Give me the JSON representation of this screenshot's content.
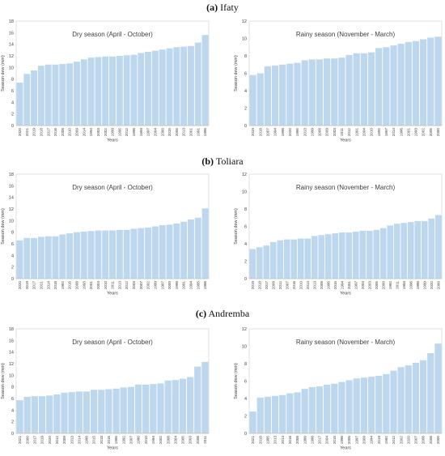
{
  "sections": [
    {
      "letter": "(a)",
      "name": "Ifaty"
    },
    {
      "letter": "(b)",
      "name": "Toliara"
    },
    {
      "letter": "(c)",
      "name": "Andremba"
    }
  ],
  "chart_data": [
    {
      "type": "bar",
      "section": "Ifaty",
      "title": "Dry season (April - October)",
      "xlabel": "Years",
      "ylabel": "Season dew (mm)",
      "ylim": [
        0,
        18
      ],
      "yticks": [
        0,
        2,
        4,
        6,
        8,
        10,
        12,
        14,
        16,
        18
      ],
      "color": "#bdd7ee",
      "grid": false,
      "categories": [
        "2020",
        "2021",
        "2019",
        "2018",
        "2017",
        "2016",
        "2008",
        "2010",
        "2009",
        "2014",
        "1994",
        "2003",
        "2002",
        "1999",
        "1995",
        "2012",
        "1998",
        "1993",
        "1997",
        "2004",
        "2000",
        "2015",
        "2005",
        "2013",
        "2001",
        "1991",
        "1996"
      ],
      "values": [
        7.4,
        8.9,
        9.5,
        10.3,
        10.5,
        10.5,
        10.6,
        10.7,
        11.0,
        11.4,
        11.7,
        11.8,
        11.9,
        11.9,
        12.0,
        12.1,
        12.2,
        12.5,
        12.7,
        12.9,
        13.1,
        13.3,
        13.5,
        13.6,
        13.7,
        14.3,
        15.6
      ]
    },
    {
      "type": "bar",
      "section": "Ifaty",
      "title": "Rainy season (November - March)",
      "xlabel": "Years",
      "ylabel": "Season dew (mm)",
      "ylim": [
        0,
        12
      ],
      "yticks": [
        0,
        2,
        4,
        6,
        8,
        10,
        12
      ],
      "color": "#bdd7ee",
      "grid": false,
      "categories": [
        "2019",
        "2018",
        "2007",
        "1994",
        "1998",
        "2020",
        "1995",
        "2013",
        "1999",
        "2008",
        "2009",
        "2003",
        "2011",
        "2012",
        "1991",
        "2004",
        "2010",
        "1992",
        "1997",
        "2014",
        "1996",
        "2001",
        "1993",
        "2002",
        "2005",
        "2000"
      ],
      "values": [
        5.8,
        6.0,
        6.8,
        6.9,
        7.0,
        7.1,
        7.2,
        7.5,
        7.6,
        7.6,
        7.7,
        7.7,
        7.8,
        8.1,
        8.3,
        8.3,
        8.4,
        8.9,
        9.0,
        9.2,
        9.4,
        9.6,
        9.7,
        9.9,
        10.1,
        10.2
      ]
    },
    {
      "type": "bar",
      "section": "Toliara",
      "title": "Dry season (April - October)",
      "xlabel": "Years",
      "ylabel": "Season dew (mm)",
      "ylim": [
        0,
        18
      ],
      "yticks": [
        0,
        2,
        4,
        6,
        8,
        10,
        12,
        14,
        16,
        18
      ],
      "color": "#bdd7ee",
      "grid": false,
      "categories": [
        "2020",
        "2019",
        "2017",
        "2021",
        "2014",
        "2018",
        "1992",
        "2016",
        "2008",
        "1993",
        "2001",
        "2004",
        "2010",
        "2011",
        "2013",
        "2012",
        "2003",
        "2007",
        "2002",
        "1999",
        "1997",
        "2000",
        "1998",
        "1991",
        "1994",
        "1995",
        "1996"
      ],
      "values": [
        6.6,
        7.0,
        7.0,
        7.2,
        7.3,
        7.3,
        7.6,
        7.8,
        8.0,
        8.1,
        8.2,
        8.3,
        8.3,
        8.3,
        8.4,
        8.4,
        8.6,
        8.7,
        8.8,
        9.0,
        9.2,
        9.3,
        9.5,
        9.8,
        10.2,
        10.5,
        12.1
      ]
    },
    {
      "type": "bar",
      "section": "Toliara",
      "title": "Rainy season (November - March)",
      "xlabel": "Years",
      "ylabel": "Season dew (mm)",
      "ylim": [
        0,
        12
      ],
      "yticks": [
        0,
        2,
        4,
        6,
        8,
        10,
        12
      ],
      "color": "#bdd7ee",
      "grid": false,
      "categories": [
        "2019",
        "2018",
        "2017",
        "2009",
        "2012",
        "2007",
        "2016",
        "2010",
        "2014",
        "2013",
        "2008",
        "1995",
        "2015",
        "1994",
        "2001",
        "1997",
        "2004",
        "2003",
        "2005",
        "2000",
        "1992",
        "2011",
        "1993",
        "1996",
        "1998",
        "1999",
        "2020",
        "2000"
      ],
      "values": [
        3.4,
        3.6,
        3.8,
        4.2,
        4.4,
        4.5,
        4.5,
        4.6,
        4.6,
        4.9,
        5.0,
        5.1,
        5.2,
        5.3,
        5.3,
        5.4,
        5.5,
        5.5,
        5.6,
        5.8,
        6.1,
        6.3,
        6.4,
        6.5,
        6.6,
        6.6,
        6.9,
        7.3
      ]
    },
    {
      "type": "bar",
      "section": "Andremba",
      "title": "Dry season (April - October)",
      "xlabel": "Years",
      "ylabel": "Season dew (mm)",
      "ylim": [
        0,
        18
      ],
      "yticks": [
        0,
        2,
        4,
        6,
        8,
        10,
        12,
        14,
        16,
        18
      ],
      "color": "#bdd7ee",
      "grid": false,
      "categories": [
        "2021",
        "2000",
        "2017",
        "2019",
        "2020",
        "2012",
        "2009",
        "2013",
        "2014",
        "1998",
        "2015",
        "2018",
        "2016",
        "1995",
        "1992",
        "2007",
        "1990",
        "2010",
        "1994",
        "2002",
        "2008",
        "2004",
        "2005",
        "2003",
        "2006",
        "2011"
      ],
      "values": [
        5.7,
        6.3,
        6.4,
        6.4,
        6.5,
        6.7,
        7.0,
        7.1,
        7.2,
        7.2,
        7.5,
        7.5,
        7.6,
        7.7,
        7.9,
        8.0,
        8.4,
        8.4,
        8.5,
        8.6,
        9.1,
        9.2,
        9.4,
        9.7,
        11.5,
        12.3
      ]
    },
    {
      "type": "bar",
      "section": "Andremba",
      "title": "Rainy season (November - March)",
      "xlabel": "Years",
      "ylabel": "Season dew (mm)",
      "ylim": [
        0,
        12
      ],
      "yticks": [
        0,
        2,
        4,
        6,
        8,
        10,
        12
      ],
      "color": "#bdd7ee",
      "grid": false,
      "categories": [
        "2021",
        "2018",
        "1995",
        "2013",
        "2014",
        "2016",
        "2008",
        "1999",
        "1998",
        "2017",
        "2004",
        "2015",
        "1996",
        "2005",
        "1997",
        "2009",
        "1994",
        "2019",
        "1992",
        "2012",
        "2002",
        "2020",
        "2007",
        "2008",
        "2006",
        "2000"
      ],
      "values": [
        2.5,
        4.1,
        4.2,
        4.3,
        4.4,
        4.6,
        4.7,
        5.1,
        5.3,
        5.4,
        5.6,
        5.7,
        5.9,
        6.1,
        6.3,
        6.4,
        6.5,
        6.6,
        6.8,
        7.2,
        7.6,
        7.8,
        8.1,
        8.4,
        9.2,
        10.3
      ]
    }
  ]
}
